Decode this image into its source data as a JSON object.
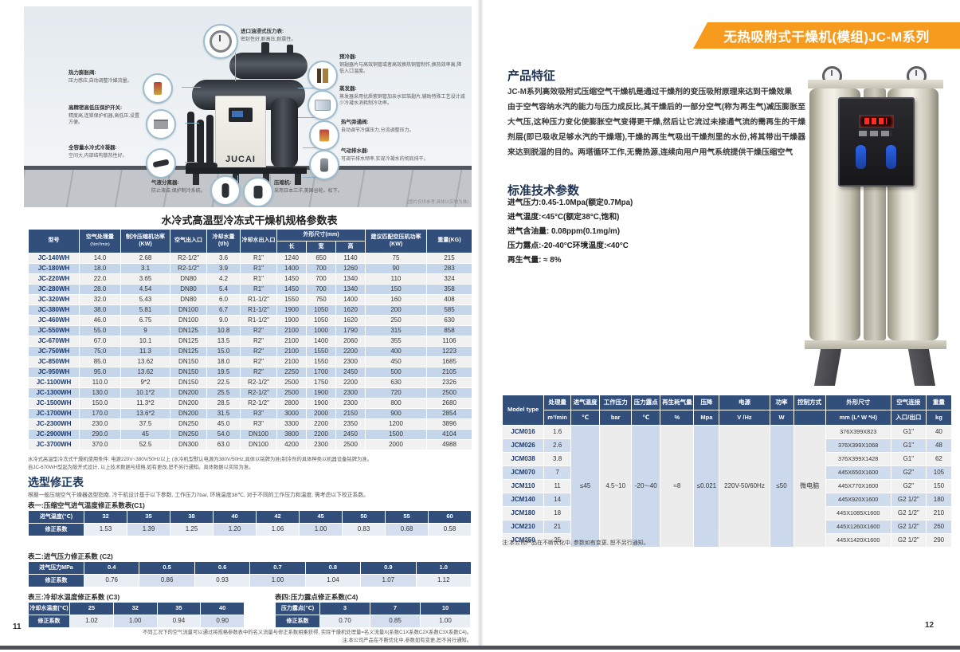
{
  "left_page": {
    "page_number": "11",
    "photo": {
      "brand": "JUCAI",
      "disclaimer": "(图片仅供参考,具体以实物为准)",
      "callouts": {
        "gauge": {
          "title": "进口油浸式压力表:",
          "desc": "密封性好,耐高压,耐震性。"
        },
        "expansion_valve": {
          "title": "热力膨胀阀:",
          "desc": "压力感应,自动调整冷媒流量。"
        },
        "hl_switch": {
          "title": "高精密高低压保护开关:",
          "desc": "精度高,连锁保护机器,高低压,设置方便。"
        },
        "condenser": {
          "title": "全容量水冷式冷凝器:",
          "desc": "空间大,内部结构散热性好。"
        },
        "separator": {
          "title": "气液分离器:",
          "desc": "防止液击,保护制冷系统。"
        },
        "compressor": {
          "title": "压缩机:",
          "desc": "采用日本三洋,美国谷轮。松下。"
        },
        "precooler": {
          "title": "预冷器:",
          "desc": "铜翅器片与高效铜管或者高效换热铜管制作,换热效率高,降低入口温度。"
        },
        "evaporator": {
          "title": "蒸发器:",
          "desc": "蒸发器采用优质紫铜管加亲水铝箔翅片,辅助特殊工艺设计减少冷凝水消耗制冷功率。"
        },
        "bypass_valve": {
          "title": "热气旁通阀:",
          "desc": "自动调节冷媒压力,分流调整压力。"
        },
        "drainer": {
          "title": "气动排水器:",
          "desc": "可调节排水频率,实现冷凝水的彻底排干。"
        }
      }
    },
    "spec_table": {
      "title": "水冷式高温型冷冻式干燥机规格参数表",
      "h_model": "型号",
      "h_capacity": "空气处理量",
      "h_capacity_unit": "(Nm³/min)",
      "h_comp_power": "制冷压缩机功率(KW)",
      "h_air_io": "空气出入口",
      "h_water_flow": "冷却水量(t/h)",
      "h_water_io": "冷却水出入口",
      "h_dims": "外形尺寸(mm)",
      "h_len": "长",
      "h_wid": "宽",
      "h_hgt": "高",
      "h_match_power": "建议匹配空压机功率(KW)",
      "h_weight": "重量(KG)",
      "rows": [
        [
          "JC-140WH",
          "14.0",
          "2.68",
          "R2-1/2\"",
          "3.6",
          "R1\"",
          "1240",
          "650",
          "1140",
          "75",
          "215"
        ],
        [
          "JC-180WH",
          "18.0",
          "3.1",
          "R2-1/2\"",
          "3.9",
          "R1\"",
          "1400",
          "700",
          "1260",
          "90",
          "283"
        ],
        [
          "JC-220WH",
          "22.0",
          "3.65",
          "DN80",
          "4.2",
          "R1\"",
          "1450",
          "700",
          "1340",
          "110",
          "324"
        ],
        [
          "JC-280WH",
          "28.0",
          "4.54",
          "DN80",
          "5.4",
          "R1\"",
          "1450",
          "700",
          "1340",
          "150",
          "358"
        ],
        [
          "JC-320WH",
          "32.0",
          "5.43",
          "DN80",
          "6.0",
          "R1-1/2\"",
          "1550",
          "750",
          "1400",
          "160",
          "408"
        ],
        [
          "JC-380WH",
          "38.0",
          "5.81",
          "DN100",
          "6.7",
          "R1-1/2\"",
          "1900",
          "1050",
          "1620",
          "200",
          "585"
        ],
        [
          "JC-460WH",
          "46.0",
          "6.75",
          "DN100",
          "9.0",
          "R1-1/2\"",
          "1900",
          "1050",
          "1620",
          "250",
          "630"
        ],
        [
          "JC-550WH",
          "55.0",
          "9",
          "DN125",
          "10.8",
          "R2\"",
          "2100",
          "1000",
          "1790",
          "315",
          "858"
        ],
        [
          "JC-670WH",
          "67.0",
          "10.1",
          "DN125",
          "13.5",
          "R2\"",
          "2100",
          "1400",
          "2060",
          "355",
          "1106"
        ],
        [
          "JC-750WH",
          "75.0",
          "11.3",
          "DN125",
          "15.0",
          "R2\"",
          "2100",
          "1550",
          "2200",
          "400",
          "1223"
        ],
        [
          "JC-850WH",
          "85.0",
          "13.62",
          "DN150",
          "18.0",
          "R2\"",
          "2100",
          "1550",
          "2300",
          "450",
          "1685"
        ],
        [
          "JC-950WH",
          "95.0",
          "13.62",
          "DN150",
          "19.5",
          "R2\"",
          "2250",
          "1700",
          "2450",
          "500",
          "2105"
        ],
        [
          "JC-1100WH",
          "110.0",
          "9*2",
          "DN150",
          "22.5",
          "R2-1/2\"",
          "2500",
          "1750",
          "2200",
          "630",
          "2326"
        ],
        [
          "JC-1300WH",
          "130.0",
          "10.1*2",
          "DN200",
          "25.5",
          "R2-1/2\"",
          "2500",
          "1900",
          "2300",
          "720",
          "2500"
        ],
        [
          "JC-1500WH",
          "150.0",
          "11.3*2",
          "DN200",
          "28.5",
          "R2-1/2\"",
          "2800",
          "1900",
          "2300",
          "800",
          "2680"
        ],
        [
          "JC-1700WH",
          "170.0",
          "13.6*2",
          "DN200",
          "31.5",
          "R3\"",
          "3000",
          "2000",
          "2150",
          "900",
          "2854"
        ],
        [
          "JC-2300WH",
          "230.0",
          "37.5",
          "DN250",
          "45.0",
          "R3\"",
          "3300",
          "2200",
          "2350",
          "1200",
          "3896"
        ],
        [
          "JC-2900WH",
          "290.0",
          "45",
          "DN250",
          "54.0",
          "DN100",
          "3800",
          "2200",
          "2450",
          "1500",
          "4104"
        ],
        [
          "JC-3700WH",
          "370.0",
          "52.5",
          "DN300",
          "63.0",
          "DN100",
          "4200",
          "2300",
          "2500",
          "2000",
          "4988"
        ]
      ]
    },
    "usage_note1": "水冷式高温型冷冻式干燥机使用条件: 电源220V~380V/50Hz以上 (水冷机型默认电源为380V/50Hz,具体以铭牌为准)制冷剂的具体种类以机器设备铭牌为准。",
    "usage_note2": "自JC-670WH型起为敞开式设计, 以上技术数据与规格,如有更改,恕不另行通知。具体数据以实际为准。",
    "correction": {
      "heading": "选型修正表",
      "subtitle": "根据一般压缩空气干燥器选型指南, 冷干机设计基于以下参数, 工作压力7bar, 环境温度38℃, 对于不同的工作压力和温度, 需考虑以下校正系数。",
      "t1": {
        "caption": "表一:压缩空气进气温度修正系数表(C1)",
        "row1_label": "进气温度(℃)",
        "row1": [
          "32",
          "35",
          "38",
          "40",
          "42",
          "45",
          "50",
          "55",
          "60"
        ],
        "row2_label": "修正系数",
        "row2": [
          "1.53",
          "1.39",
          "1.25",
          "1.20",
          "1.06",
          "1.00",
          "0.83",
          "0.68",
          "0.58"
        ]
      },
      "t2": {
        "caption": "表二:进气压力修正系数 (C2)",
        "row1_label": "进气压力MPa",
        "row1": [
          "0.4",
          "0.5",
          "0.6",
          "0.7",
          "0.8",
          "0.9",
          "1.0"
        ],
        "row2_label": "修正系数",
        "row2": [
          "0.76",
          "0.86",
          "0.93",
          "1.00",
          "1.04",
          "1.07",
          "1.12"
        ]
      },
      "t3": {
        "caption": "表三:冷却水温度修正系数 (C3)",
        "row1_label": "冷却水温度(℃)",
        "row1": [
          "25",
          "32",
          "35",
          "40"
        ],
        "row2_label": "修正系数",
        "row2": [
          "1.02",
          "1.00",
          "0.94",
          "0.90"
        ]
      },
      "t4": {
        "caption": "表四:压力露点修正系数(C4)",
        "row1_label": "压力露点(℃)",
        "row1": [
          "3",
          "7",
          "10"
        ],
        "row2_label": "修正系数",
        "row2": [
          "0.70",
          "0.85",
          "1.00"
        ]
      },
      "footnote1": "不同工况下的空气流量可以通过将规格参数表中的名义流量与修正系数相乘获得, 实际干燥机处理量=名义流量X(系数C1X系数C2X系数C3X系数C4)。",
      "footnote2": "注:本公司产品在不断优化中,参数如有变更,恕不另行通知。"
    }
  },
  "right_page": {
    "page_number": "12",
    "banner": "无热吸附式干燥机(模组)JC-M系列",
    "features": {
      "heading": "产品特征",
      "p1": "JC-M系列高效吸附式压缩空气干燥机是通过干燥剂的变压吸附原理来达到干燥效果",
      "p2": "由于空气容纳水汽的能力与压力成反比,其干燥后的一部分空气(称为再生气)减压膨胀至大气压,这种压力变化使膨胀空气变得更干燥,然后让它流过未接通气流的需再生的干燥剂层(即已吸收足够水汽的干燥塔),干燥的再生气吸出干燥剂里的水份,将其带出干燥器来达到脱湿的目的。两塔循环工作,无需热源,连续向用户用气系统提供干燥压缩空气"
    },
    "params": {
      "heading": "标准技术参数",
      "line1": "进气压力:0.45-1.0Mpa(额定0.7Mpa)",
      "line2": "进气温度:<45°C(额定38°C,饱和)",
      "line3": "进气含油量: 0.08ppm(0.1mg/m)",
      "line4": "压力露点:-20-40°C环境温度:<40°C",
      "line5": "再生气量: ≈ 8%"
    },
    "model_table": {
      "h_model": "Model type",
      "headers": [
        {
          "l": "处理量",
          "u": "m³/min"
        },
        {
          "l": "进气温度",
          "u": "℃"
        },
        {
          "l": "工作压力",
          "u": "bar"
        },
        {
          "l": "压力露点",
          "u": "℃"
        },
        {
          "l": "再生耗气量",
          "u": "%"
        },
        {
          "l": "压降",
          "u": "Mpa"
        },
        {
          "l": "电源",
          "u": "V /Hz"
        },
        {
          "l": "功率",
          "u": "W"
        },
        {
          "l": "控制方式",
          "u": ""
        },
        {
          "l": "外形尺寸",
          "u": "mm (L* W *H)"
        },
        {
          "l": "空气连接",
          "u": "入口/出口"
        },
        {
          "l": "重量",
          "u": "kg"
        }
      ],
      "merged": [
        "≤45",
        "4.5~10",
        "-20~-40",
        "≈8",
        "≤0.021",
        "220V-50/60Hz",
        "≤50",
        "微电脑"
      ],
      "rows": [
        [
          "JCM016",
          "1.6",
          "376X399X823",
          "G1\"",
          "40"
        ],
        [
          "JCM026",
          "2.6",
          "376X399X1068",
          "G1\"",
          "48"
        ],
        [
          "JCM038",
          "3.8",
          "376X399X1428",
          "G1\"",
          "62"
        ],
        [
          "JCM070",
          "7",
          "445X650X1600",
          "G2\"",
          "105"
        ],
        [
          "JCM110",
          "11",
          "445X770X1600",
          "G2\"",
          "150"
        ],
        [
          "JCM140",
          "14",
          "445X920X1600",
          "G2 1/2\"",
          "180"
        ],
        [
          "JCM180",
          "18",
          "445X1085X1600",
          "G2 1/2\"",
          "210"
        ],
        [
          "JCM210",
          "21",
          "445X1260X1600",
          "G2 1/2\"",
          "260"
        ],
        [
          "JCM250",
          "25",
          "445X1420X1600",
          "G2 1/2\"",
          "290"
        ]
      ],
      "note": "注:本公司产品在不断优化中, 参数如有变更, 恕不另行通知。"
    }
  }
}
